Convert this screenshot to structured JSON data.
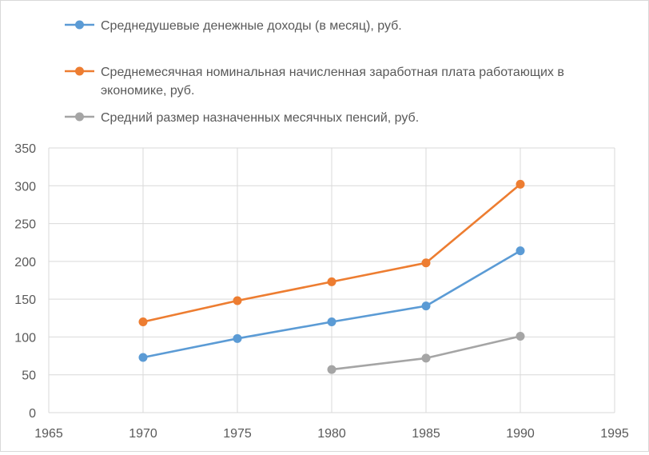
{
  "chart_data": {
    "type": "line",
    "title": "",
    "xlabel": "",
    "ylabel": "",
    "xlim": [
      1965,
      1995
    ],
    "ylim": [
      0,
      350
    ],
    "x_ticks": [
      1965,
      1970,
      1975,
      1980,
      1985,
      1990,
      1995
    ],
    "y_ticks": [
      0,
      50,
      100,
      150,
      200,
      250,
      300,
      350
    ],
    "grid": true,
    "legend_position": "top",
    "series": [
      {
        "name": "Среднедушевые денежные  доходы (в месяц), руб.",
        "legend_lines": [
          "Среднедушевые денежные  доходы (в месяц), руб."
        ],
        "color": "#5b9bd5",
        "x": [
          1970,
          1975,
          1980,
          1985,
          1990
        ],
        "y": [
          73,
          98,
          120,
          141,
          214
        ]
      },
      {
        "name": "Среднемесячная номинальная начисленная заработная плата работающих в экономике, руб.",
        "legend_lines": [
          "Среднемесячная номинальная начисленная заработная плата работающих в",
          "экономике, руб."
        ],
        "color": "#ed7d31",
        "x": [
          1970,
          1975,
          1980,
          1985,
          1990
        ],
        "y": [
          120,
          148,
          173,
          198,
          302
        ]
      },
      {
        "name": "Средний размер назначенных месячных пенсий, руб.",
        "legend_lines": [
          "Средний размер назначенных месячных пенсий, руб."
        ],
        "color": "#a5a5a5",
        "x": [
          1980,
          1985,
          1990
        ],
        "y": [
          57,
          72,
          101
        ]
      }
    ]
  }
}
